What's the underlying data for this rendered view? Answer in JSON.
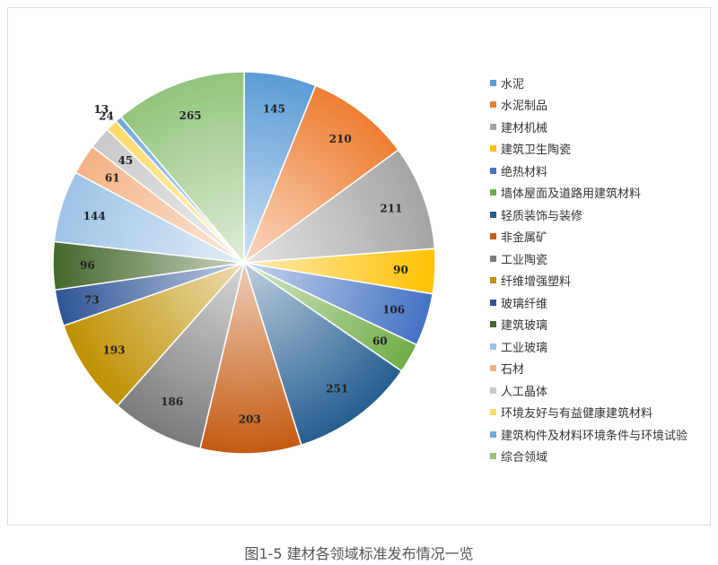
{
  "chart_data": {
    "type": "pie",
    "title": "",
    "start_angle_deg": 0,
    "direction": "clockwise",
    "legend_position": "right",
    "series": [
      {
        "name": "水泥",
        "value": 145,
        "color": "#5b9bd5"
      },
      {
        "name": "水泥制品",
        "value": 210,
        "color": "#ed7d31"
      },
      {
        "name": "建材机械",
        "value": 211,
        "color": "#a5a5a5"
      },
      {
        "name": "建筑卫生陶瓷",
        "value": 90,
        "color": "#ffc000"
      },
      {
        "name": "绝热材料",
        "value": 106,
        "color": "#4472c4"
      },
      {
        "name": "墙体屋面及道路用建筑材料",
        "value": 60,
        "color": "#70ad47"
      },
      {
        "name": "轻质装饰与装修",
        "value": 251,
        "color": "#255e91"
      },
      {
        "name": "非金属矿",
        "value": 203,
        "color": "#c55a11"
      },
      {
        "name": "工业陶瓷",
        "value": 186,
        "color": "#7b7b7b"
      },
      {
        "name": "纤维增强塑料",
        "value": 193,
        "color": "#bf9000"
      },
      {
        "name": "玻璃纤维",
        "value": 73,
        "color": "#2f5597"
      },
      {
        "name": "建筑玻璃",
        "value": 96,
        "color": "#43682b"
      },
      {
        "name": "工业玻璃",
        "value": 144,
        "color": "#9dc3e6"
      },
      {
        "name": "石材",
        "value": 61,
        "color": "#f4b183"
      },
      {
        "name": "人工晶体",
        "value": 45,
        "color": "#c9c9c9"
      },
      {
        "name": "环境友好与有益健康建筑材料",
        "value": 24,
        "color": "#ffd966"
      },
      {
        "name": "建筑构件及材料环境条件与环境试验",
        "value": 13,
        "color": "#6fa8dc"
      },
      {
        "name": "综合领域",
        "value": 265,
        "color": "#93c47d"
      }
    ]
  },
  "caption": "图1-5 建材各领域标准发布情况一览"
}
